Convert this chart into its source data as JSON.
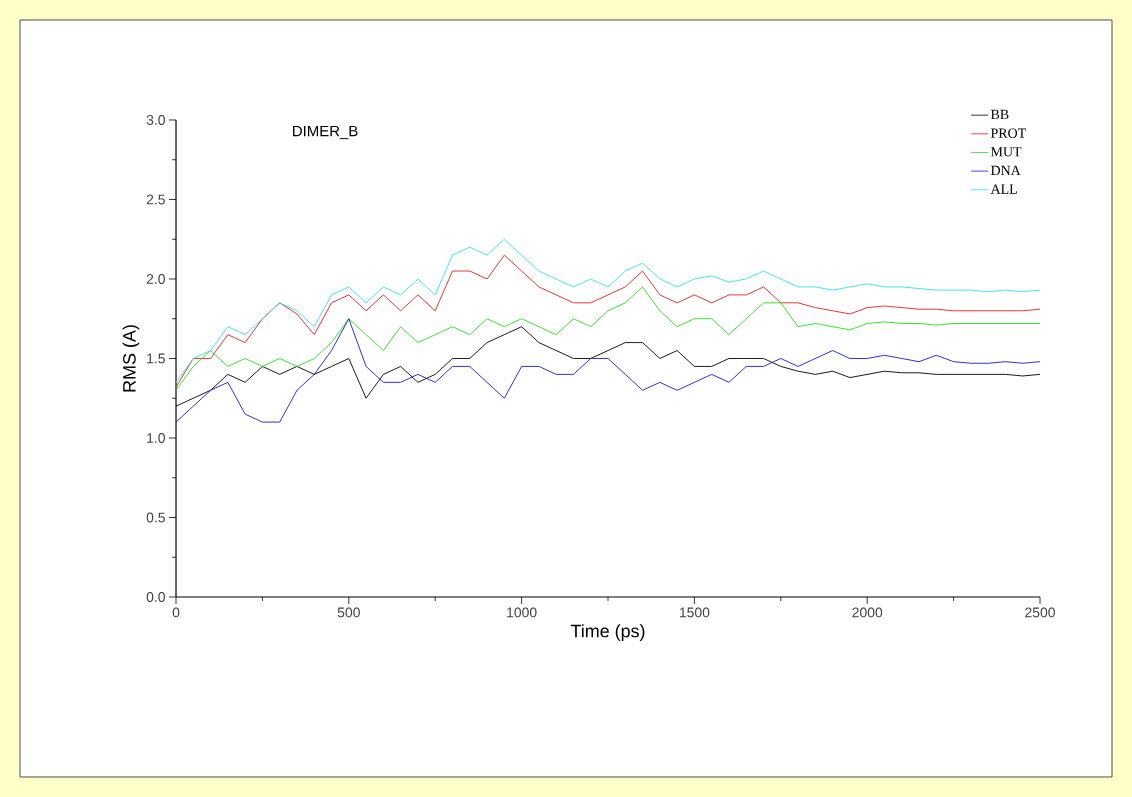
{
  "chart_data": {
    "type": "line",
    "title": "DIMER_B",
    "xlabel": "Time (ps)",
    "ylabel": "RMS (A)",
    "x": [
      0,
      50,
      100,
      150,
      200,
      250,
      300,
      350,
      400,
      450,
      500,
      550,
      600,
      650,
      700,
      750,
      800,
      850,
      900,
      950,
      1000,
      1050,
      1100,
      1150,
      1200,
      1250,
      1300,
      1350,
      1400,
      1450,
      1500,
      1550,
      1600,
      1650,
      1700,
      1750,
      1800,
      1850,
      1900,
      1950,
      2000,
      2050,
      2100,
      2150,
      2200,
      2250,
      2300,
      2350,
      2400,
      2450,
      2500
    ],
    "series": [
      {
        "name": "BB",
        "color": "#000000",
        "values": [
          1.2,
          1.25,
          1.3,
          1.4,
          1.35,
          1.45,
          1.4,
          1.45,
          1.4,
          1.45,
          1.5,
          1.25,
          1.4,
          1.45,
          1.35,
          1.4,
          1.5,
          1.5,
          1.6,
          1.65,
          1.7,
          1.6,
          1.55,
          1.5,
          1.5,
          1.55,
          1.6,
          1.6,
          1.5,
          1.55,
          1.45,
          1.45,
          1.5,
          1.5,
          1.5,
          1.45,
          1.42,
          1.4,
          1.42,
          1.38,
          1.4,
          1.42,
          1.41,
          1.41,
          1.4,
          1.4,
          1.4,
          1.4,
          1.4,
          1.39,
          1.4
        ]
      },
      {
        "name": "PROT",
        "color": "#e0201c",
        "values": [
          1.32,
          1.5,
          1.5,
          1.65,
          1.6,
          1.75,
          1.85,
          1.78,
          1.65,
          1.85,
          1.9,
          1.8,
          1.9,
          1.8,
          1.9,
          1.8,
          2.05,
          2.05,
          2.0,
          2.15,
          2.05,
          1.95,
          1.9,
          1.85,
          1.85,
          1.9,
          1.95,
          2.05,
          1.9,
          1.85,
          1.9,
          1.85,
          1.9,
          1.9,
          1.95,
          1.85,
          1.85,
          1.82,
          1.8,
          1.78,
          1.82,
          1.83,
          1.82,
          1.81,
          1.81,
          1.8,
          1.8,
          1.8,
          1.8,
          1.8,
          1.81
        ]
      },
      {
        "name": "MUT",
        "color": "#22e01c",
        "values": [
          1.3,
          1.45,
          1.55,
          1.45,
          1.5,
          1.45,
          1.5,
          1.45,
          1.5,
          1.6,
          1.75,
          1.65,
          1.55,
          1.7,
          1.6,
          1.65,
          1.7,
          1.65,
          1.75,
          1.7,
          1.75,
          1.7,
          1.65,
          1.75,
          1.7,
          1.8,
          1.85,
          1.95,
          1.8,
          1.7,
          1.75,
          1.75,
          1.65,
          1.75,
          1.85,
          1.85,
          1.7,
          1.72,
          1.7,
          1.68,
          1.72,
          1.73,
          1.72,
          1.72,
          1.71,
          1.72,
          1.72,
          1.72,
          1.72,
          1.72,
          1.72
        ]
      },
      {
        "name": "DNA",
        "color": "#1a1ad0",
        "values": [
          1.1,
          1.2,
          1.3,
          1.35,
          1.15,
          1.1,
          1.1,
          1.3,
          1.4,
          1.55,
          1.75,
          1.45,
          1.35,
          1.35,
          1.4,
          1.35,
          1.45,
          1.45,
          1.35,
          1.25,
          1.45,
          1.45,
          1.4,
          1.4,
          1.5,
          1.5,
          1.4,
          1.3,
          1.35,
          1.3,
          1.35,
          1.4,
          1.35,
          1.45,
          1.45,
          1.5,
          1.45,
          1.5,
          1.55,
          1.5,
          1.5,
          1.52,
          1.5,
          1.48,
          1.52,
          1.48,
          1.47,
          1.47,
          1.48,
          1.47,
          1.48
        ]
      },
      {
        "name": "ALL",
        "color": "#33e0f0",
        "values": [
          1.35,
          1.5,
          1.55,
          1.7,
          1.65,
          1.75,
          1.85,
          1.8,
          1.7,
          1.9,
          1.95,
          1.85,
          1.95,
          1.9,
          2.0,
          1.9,
          2.15,
          2.2,
          2.15,
          2.25,
          2.15,
          2.05,
          2.0,
          1.95,
          2.0,
          1.95,
          2.05,
          2.1,
          2.0,
          1.95,
          2.0,
          2.02,
          1.98,
          2.0,
          2.05,
          2.0,
          1.95,
          1.95,
          1.93,
          1.95,
          1.97,
          1.95,
          1.95,
          1.94,
          1.93,
          1.93,
          1.93,
          1.92,
          1.93,
          1.92,
          1.93
        ]
      }
    ],
    "xlim": [
      0,
      2500
    ],
    "ylim": [
      0,
      3.0
    ],
    "xticks": [
      0,
      500,
      1000,
      1500,
      2000,
      2500
    ],
    "yticks": [
      {
        "value": 0,
        "label": "0.0"
      },
      {
        "value": 0.5,
        "label": "0.5"
      },
      {
        "value": 1.0,
        "label": "1.0"
      },
      {
        "value": 1.5,
        "label": "1.5"
      },
      {
        "value": 2.0,
        "label": "2.0"
      },
      {
        "value": 2.5,
        "label": "2.5"
      },
      {
        "value": 3.0,
        "label": "3.0"
      }
    ],
    "legend": "top right",
    "grid": false,
    "marker": "none",
    "line_style": "solid"
  }
}
